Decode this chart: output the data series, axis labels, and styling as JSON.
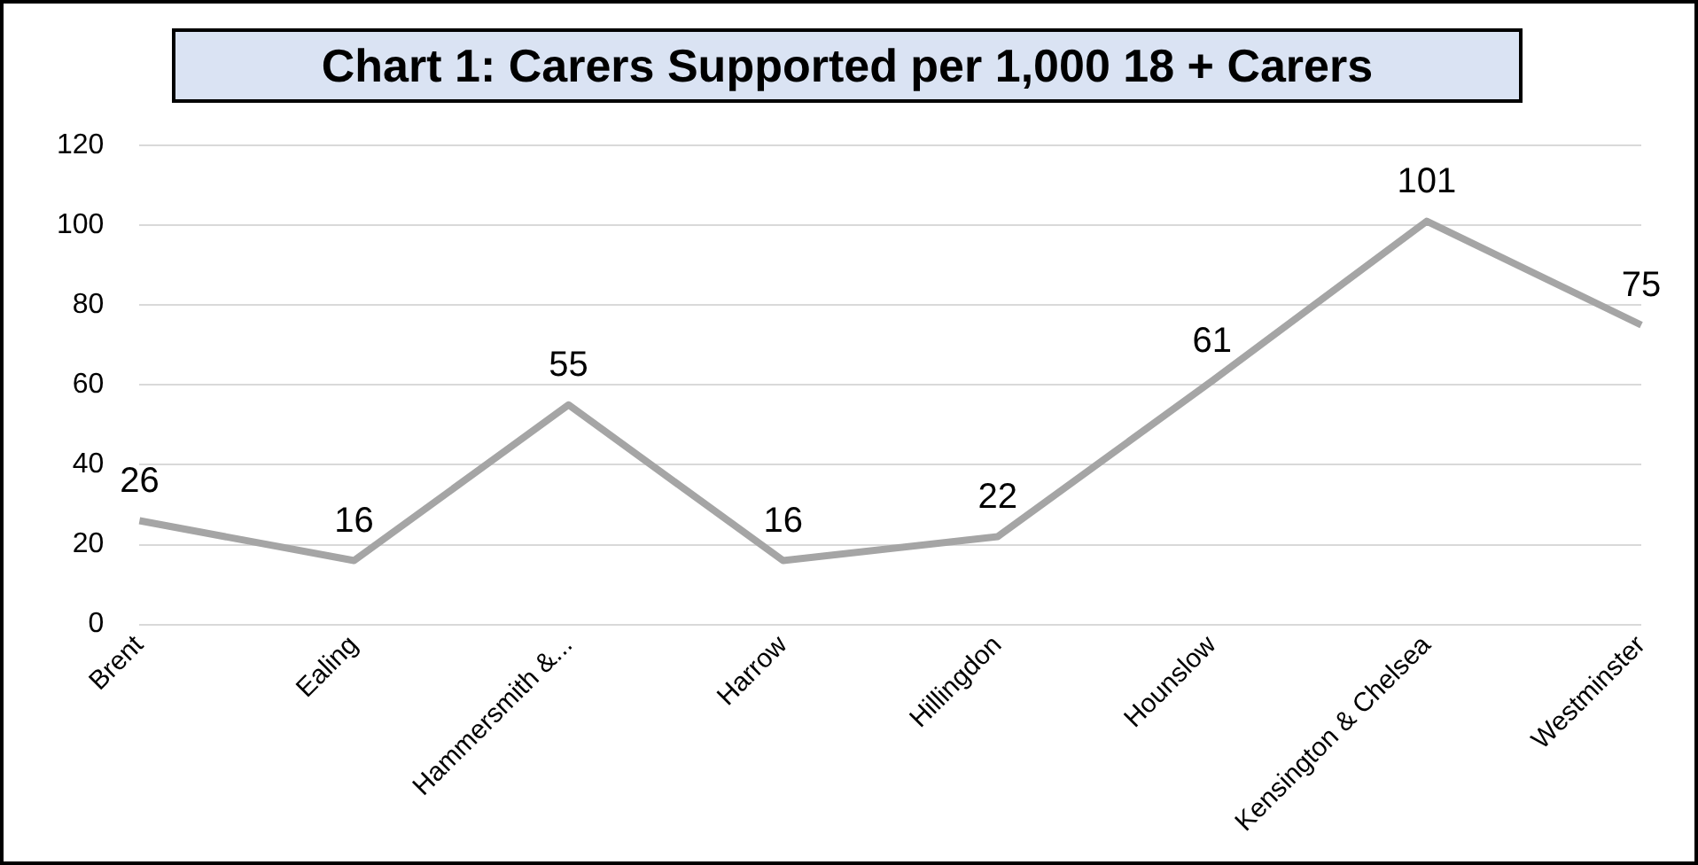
{
  "chart_data": {
    "type": "line",
    "title": "Chart 1: Carers Supported per 1,000 18 + Carers",
    "categories": [
      "Brent",
      "Ealing",
      "Hammersmith &...",
      "Harrow",
      "Hillingdon",
      "Hounslow",
      "Kensington & Chelsea",
      "Westminster"
    ],
    "values": [
      26,
      16,
      55,
      16,
      22,
      61,
      101,
      75
    ],
    "color": "#a5a5a5",
    "ylim": [
      0,
      120
    ],
    "yticks": [
      0,
      20,
      40,
      60,
      80,
      100,
      120
    ],
    "grid": "y",
    "marker": "none",
    "data_labels": true
  }
}
